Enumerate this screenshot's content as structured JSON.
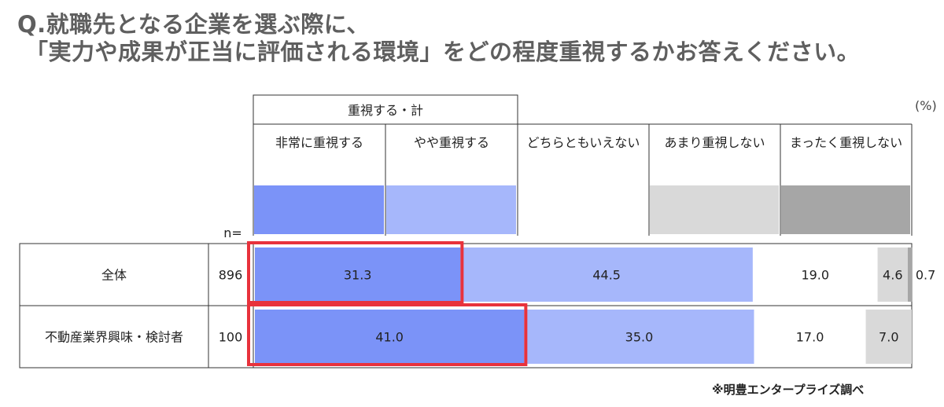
{
  "title": {
    "line1": "Q.就職先となる企業を選ぶ際に、",
    "line2": "「実力や成果が正当に評価される環境」をどの程度重視するかお答えください。"
  },
  "unit_label": "(%)",
  "credit": "※明豊エンタープライズ調べ",
  "chart_data": {
    "type": "bar",
    "stacked": true,
    "orientation": "horizontal",
    "group_header": "重視する・計",
    "n_label": "n=",
    "xlim": [
      0,
      100
    ],
    "categories": [
      "全体",
      "不動産業界興味・検討者"
    ],
    "n": [
      "896",
      "100"
    ],
    "series": [
      {
        "name": "非常に重視する",
        "color": "#7b93f8",
        "values": [
          31.3,
          41.0
        ],
        "labels": [
          "31.3",
          "41.0"
        ]
      },
      {
        "name": "やや重視する",
        "color": "#a6b7fb",
        "values": [
          44.5,
          35.0
        ],
        "labels": [
          "44.5",
          "35.0"
        ]
      },
      {
        "name": "どちらともいえない",
        "color": "#ffffff",
        "values": [
          19.0,
          17.0
        ],
        "labels": [
          "19.0",
          "17.0"
        ]
      },
      {
        "name": "あまり重視しない",
        "color": "#d9d9d9",
        "values": [
          4.6,
          7.0
        ],
        "labels": [
          "4.6",
          "7.0"
        ]
      },
      {
        "name": "まったく重視しない",
        "color": "#a6a6a6",
        "values": [
          0.7,
          0.0
        ],
        "labels": [
          "0.7",
          ""
        ]
      }
    ],
    "highlight": {
      "series": "非常に重視する",
      "color": "#e8323c"
    }
  }
}
